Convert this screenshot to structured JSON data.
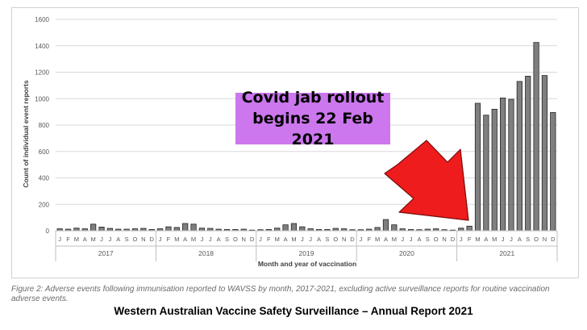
{
  "chart_data": {
    "type": "bar",
    "title": "",
    "xlabel": "Month and year of vaccination",
    "ylabel": "Count of individual event reports",
    "ylim": [
      0,
      1600
    ],
    "yticks": [
      "0",
      "200",
      "400",
      "600",
      "800",
      "1000",
      "1200",
      "1400",
      "1600"
    ],
    "month_labels": [
      "J",
      "F",
      "M",
      "A",
      "M",
      "J",
      "J",
      "A",
      "S",
      "O",
      "N",
      "D"
    ],
    "years": [
      "2017",
      "2018",
      "2019",
      "2020",
      "2021"
    ],
    "values": [
      15,
      12,
      20,
      15,
      50,
      28,
      18,
      12,
      12,
      15,
      18,
      10,
      15,
      30,
      25,
      55,
      50,
      20,
      18,
      12,
      10,
      10,
      12,
      5,
      8,
      10,
      20,
      45,
      55,
      30,
      15,
      10,
      10,
      18,
      15,
      8,
      8,
      12,
      25,
      85,
      45,
      15,
      10,
      8,
      12,
      15,
      8,
      5,
      20,
      35,
      965,
      875,
      920,
      1005,
      995,
      1130,
      1170,
      1425,
      1175,
      895
    ],
    "bar_color": "#7f7f7f",
    "grid": true,
    "annotation": {
      "line1": "Covid jab rollout",
      "line2": "begins 22 Feb 2021",
      "box_color": "#cc77ee",
      "arrow_color": "#ee1c1c"
    }
  },
  "caption": "Figure 2: Adverse events following immunisation reported to WAVSS by month, 2017-2021, excluding active surveillance reports for routine vaccination adverse events.",
  "report_title": "Western Australian Vaccine Safety Surveillance – Annual Report 2021"
}
